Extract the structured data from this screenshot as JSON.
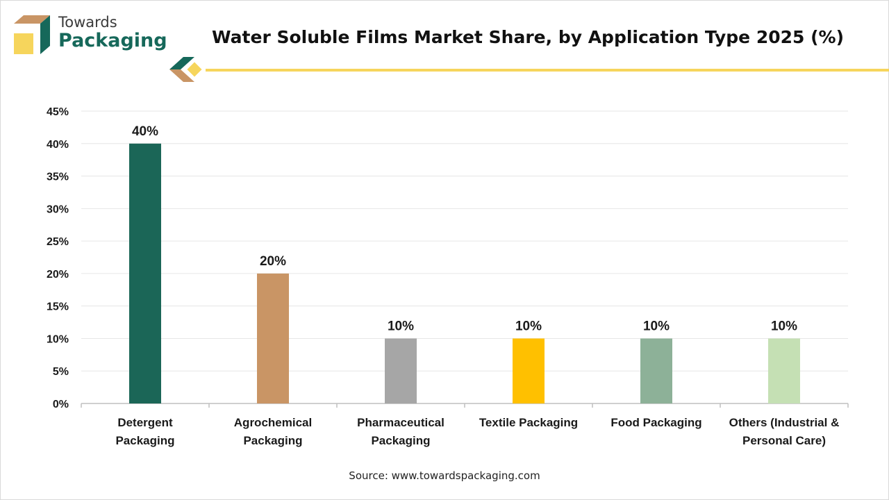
{
  "brand": {
    "line1": "Towards",
    "line2": "Packaging",
    "colors": {
      "green": "#16685a",
      "tan": "#c99565",
      "yellow": "#f6d55c"
    }
  },
  "chart_data": {
    "type": "bar",
    "title": "Water Soluble Films Market Share, by Application Type 2025 (%)",
    "categories": [
      [
        "Detergent",
        "Packaging"
      ],
      [
        "Agrochemical",
        "Packaging"
      ],
      [
        "Pharmaceutical",
        "Packaging"
      ],
      [
        "Textile Packaging"
      ],
      [
        "Food Packaging"
      ],
      [
        "Others (Industrial &",
        "Personal Care)"
      ]
    ],
    "values": [
      40,
      20,
      10,
      10,
      10,
      10
    ],
    "value_labels": [
      "40%",
      "20%",
      "10%",
      "10%",
      "10%",
      "10%"
    ],
    "colors": [
      "#1b6657",
      "#c99565",
      "#a6a6a6",
      "#ffc000",
      "#8db198",
      "#c5e0b4"
    ],
    "ylim": [
      0,
      45
    ],
    "yticks": [
      0,
      5,
      10,
      15,
      20,
      25,
      30,
      35,
      40,
      45
    ],
    "ytick_labels": [
      "0%",
      "5%",
      "10%",
      "15%",
      "20%",
      "25%",
      "30%",
      "35%",
      "40%",
      "45%"
    ],
    "grid": true,
    "xlabel": "",
    "ylabel": ""
  },
  "source": "Source: www.towardspackaging.com"
}
